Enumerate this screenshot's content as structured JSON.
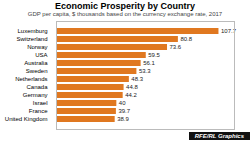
{
  "chart_data": {
    "type": "bar",
    "orientation": "horizontal",
    "title": "Economic Prosperity by Country",
    "subtitle": "GDP per capita, $ thousands based on the currency exchange rate, 2017",
    "categories": [
      "United Kingdom",
      "France",
      "Israel",
      "Germany",
      "Canada",
      "Netherlands",
      "Sweden",
      "Australia",
      "USA",
      "Norway",
      "Switzerland",
      "Luxemburg"
    ],
    "values": [
      38.9,
      39.7,
      40.0,
      44.2,
      44.8,
      48.3,
      53.3,
      56.1,
      59.5,
      73.6,
      80.8,
      107.7
    ],
    "value_labels": [
      "38.9",
      "39.7",
      "40",
      "44.2",
      "44.8",
      "48.3",
      "53.3",
      "56.1",
      "59.5",
      "73.6",
      "80.8",
      "107.7"
    ],
    "color": "#E07820",
    "xlim": [
      0,
      118
    ],
    "data_labels": true,
    "tick_labels": "y",
    "grid": false,
    "annotations": [
      "RFE/RL Graphics"
    ]
  }
}
